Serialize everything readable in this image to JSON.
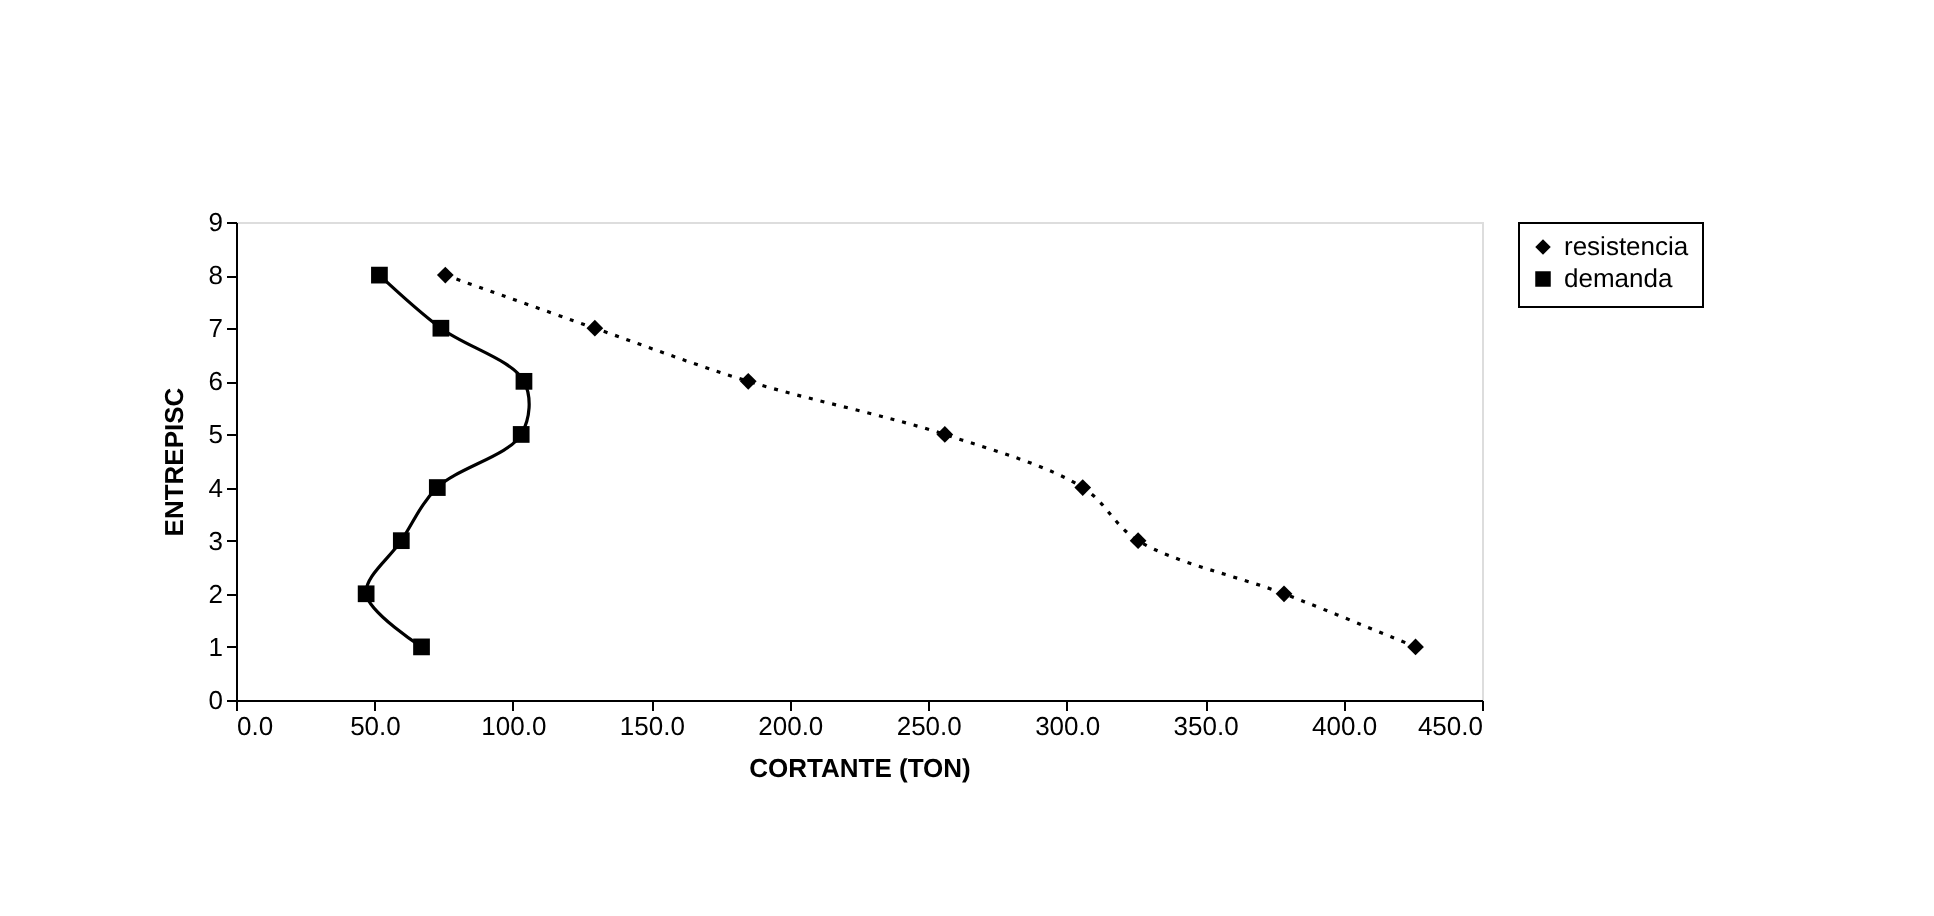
{
  "chart_data": {
    "type": "line",
    "xlabel": "CORTANTE (TON)",
    "ylabel": "ENTREPISC",
    "series": [
      {
        "name": "resistencia",
        "color": "#000000",
        "marker": "diamond",
        "line_style": "dotted",
        "x": [
          75.6,
          129.6,
          185,
          256,
          305.8,
          325.8,
          378.5,
          426
        ],
        "values": [
          8,
          7,
          6,
          5,
          4,
          3,
          2,
          1
        ]
      },
      {
        "name": "demanda",
        "color": "#000000",
        "marker": "square",
        "line_style": "solid",
        "x": [
          51.8,
          74,
          104,
          103,
          72.7,
          59.7,
          47,
          67
        ],
        "values": [
          8,
          7,
          6,
          5,
          4,
          3,
          2,
          1
        ]
      }
    ],
    "xlim": [
      0,
      450
    ],
    "xticks": [
      {
        "value": 0,
        "label": "0.0"
      },
      {
        "value": 50,
        "label": "50.0"
      },
      {
        "value": 100,
        "label": "100.0"
      },
      {
        "value": 150,
        "label": "150.0"
      },
      {
        "value": 200,
        "label": "200.0"
      },
      {
        "value": 250,
        "label": "250.0"
      },
      {
        "value": 300,
        "label": "300.0"
      },
      {
        "value": 350,
        "label": "350.0"
      },
      {
        "value": 400,
        "label": "400.0"
      },
      {
        "value": 450,
        "label": "450.0"
      }
    ],
    "ylim": [
      0,
      9
    ],
    "yticks": [
      0,
      1,
      2,
      3,
      4,
      5,
      6,
      7,
      8,
      9
    ],
    "grid": false,
    "legend": "right"
  }
}
